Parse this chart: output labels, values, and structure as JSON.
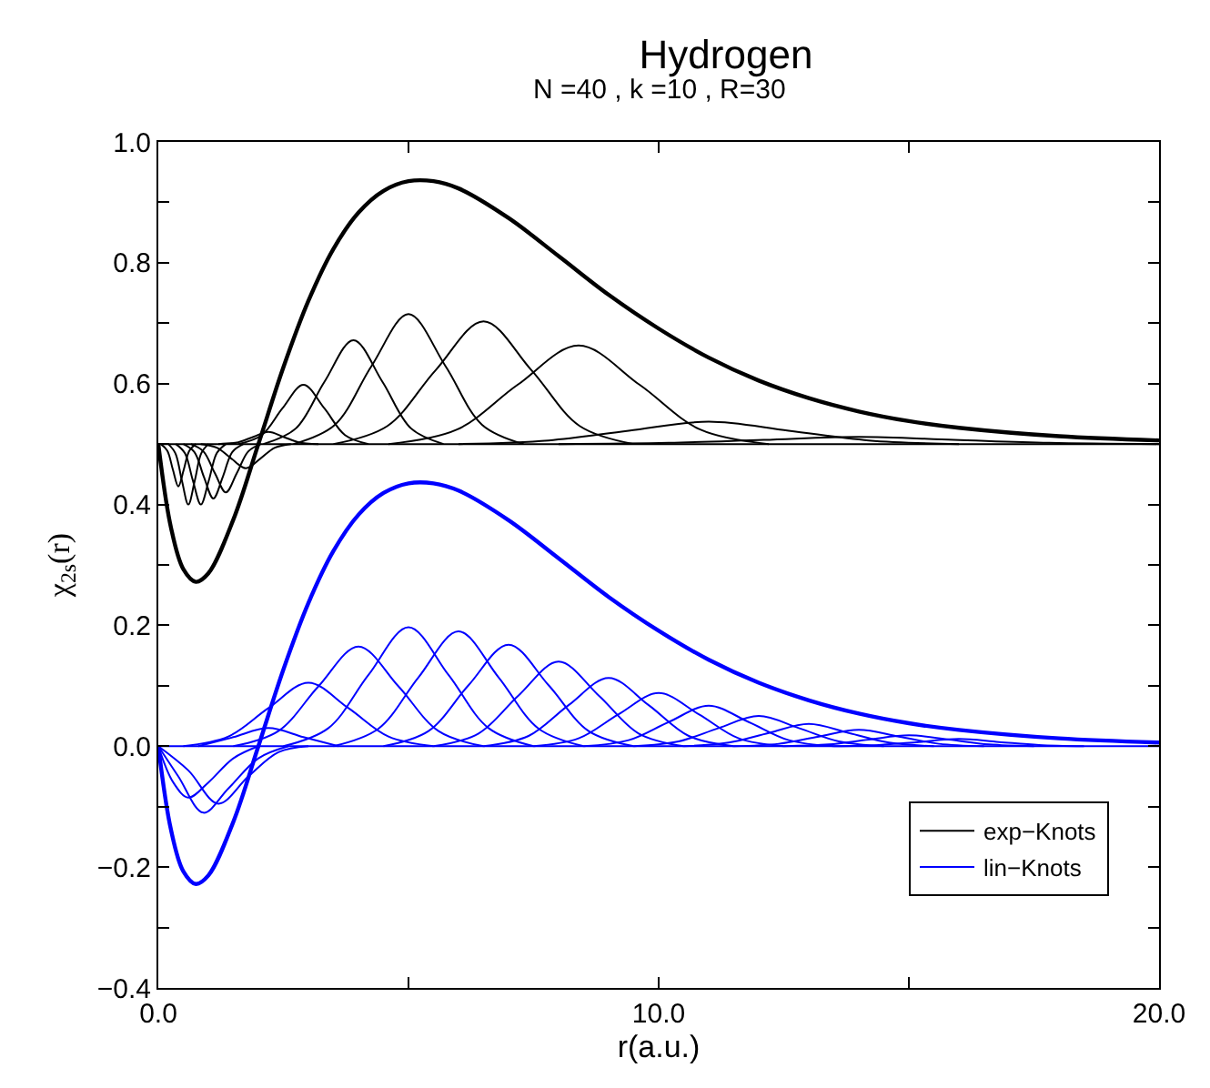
{
  "chart_data": {
    "type": "line",
    "title": "Hydrogen",
    "subtitle": "N =40 , k =10 , R=30",
    "xlabel": "r(a.u.)",
    "ylabel": "χ$_{2s}$(r)",
    "xlim": [
      0,
      20
    ],
    "xticks": [
      {
        "value": 0,
        "label": "0.0"
      },
      {
        "value": 5,
        "label": null
      },
      {
        "value": 10,
        "label": "10.0"
      },
      {
        "value": 15,
        "label": null
      },
      {
        "value": 20,
        "label": "20.0"
      }
    ],
    "ylim": [
      -0.4,
      1.0
    ],
    "yticks": [
      {
        "value": -0.4,
        "label": "−0.4"
      },
      {
        "value": -0.3,
        "label": null
      },
      {
        "value": -0.2,
        "label": "−0.2"
      },
      {
        "value": -0.1,
        "label": null
      },
      {
        "value": 0,
        "label": "0.0"
      },
      {
        "value": 0.1,
        "label": null
      },
      {
        "value": 0.2,
        "label": "0.2"
      },
      {
        "value": 0.3,
        "label": null
      },
      {
        "value": 0.4,
        "label": "0.4"
      },
      {
        "value": 0.5,
        "label": null
      },
      {
        "value": 0.6,
        "label": "0.6"
      },
      {
        "value": 0.7,
        "label": null
      },
      {
        "value": 0.8,
        "label": "0.8"
      },
      {
        "value": 0.9,
        "label": null
      },
      {
        "value": 1.0,
        "label": "1.0"
      }
    ],
    "legend": "bottom right",
    "marker": "none",
    "line_style": "solid",
    "series": [
      {
        "color": "#000000",
        "x": [
          0,
          0.25,
          0.5,
          0.75,
          1.0,
          1.5,
          2,
          2.5,
          3,
          3.5,
          4,
          4.5,
          5,
          5.5,
          6,
          7,
          8,
          9,
          10,
          11,
          12,
          13,
          14,
          15,
          16,
          18,
          20
        ],
        "values": [
          0.5,
          0.363,
          0.293,
          0.272,
          0.286,
          0.375,
          0.5,
          0.627,
          0.737,
          0.823,
          0.883,
          0.919,
          0.935,
          0.935,
          0.923,
          0.874,
          0.811,
          0.747,
          0.691,
          0.643,
          0.605,
          0.576,
          0.554,
          0.538,
          0.527,
          0.513,
          0.506
        ]
      },
      {
        "color": "#0000ff",
        "x": [
          0,
          0.25,
          0.5,
          0.75,
          1.0,
          1.5,
          2,
          2.5,
          3,
          3.5,
          4,
          4.5,
          5,
          5.5,
          6,
          7,
          8,
          9,
          10,
          11,
          12,
          13,
          14,
          15,
          16,
          18,
          20
        ],
        "values": [
          0,
          -0.137,
          -0.207,
          -0.228,
          -0.214,
          -0.125,
          0,
          0.127,
          0.237,
          0.323,
          0.383,
          0.419,
          0.435,
          0.435,
          0.423,
          0.374,
          0.311,
          0.247,
          0.191,
          0.143,
          0.105,
          0.076,
          0.054,
          0.038,
          0.027,
          0.013,
          0.006
        ]
      },
      {
        "name": "exp−Knots",
        "color": "#000000",
        "x": [
          0,
          20
        ],
        "values": [
          0.5,
          0.5
        ]
      },
      {
        "color": "#000000",
        "x": [
          1.6,
          2.07,
          2.48,
          2.9,
          3.32,
          3.73,
          4.2
        ],
        "values": [
          0.5,
          0.515,
          0.559,
          0.598,
          0.559,
          0.515,
          0.5
        ]
      },
      {
        "color": "#000000",
        "x": [
          2.1,
          2.75,
          3.32,
          3.9,
          4.48,
          5.05,
          5.7
        ],
        "values": [
          0.5,
          0.526,
          0.603,
          0.672,
          0.603,
          0.526,
          0.5
        ]
      },
      {
        "color": "#000000",
        "x": [
          2.7,
          3.53,
          4.26,
          5.0,
          5.74,
          6.47,
          7.3
        ],
        "values": [
          0.5,
          0.532,
          0.629,
          0.715,
          0.629,
          0.532,
          0.5
        ]
      },
      {
        "color": "#000000",
        "x": [
          3.5,
          4.58,
          5.54,
          6.5,
          7.46,
          8.42,
          9.5
        ],
        "values": [
          0.5,
          0.53,
          0.622,
          0.703,
          0.622,
          0.53,
          0.5
        ]
      },
      {
        "color": "#000000",
        "x": [
          4.6,
          5.97,
          7.18,
          8.4,
          9.62,
          10.83,
          12.2
        ],
        "values": [
          0.5,
          0.524,
          0.598,
          0.663,
          0.598,
          0.524,
          0.5
        ]
      },
      {
        "color": "#000000",
        "x": [
          6,
          7.8,
          9.4,
          11,
          12.6,
          14.2,
          16
        ],
        "values": [
          0.5,
          0.506,
          0.522,
          0.537,
          0.522,
          0.506,
          0.5
        ]
      },
      {
        "color": "#000000",
        "x": [
          8,
          10.2,
          12.1,
          14,
          15.9,
          17.8,
          20
        ],
        "values": [
          0.5,
          0.502,
          0.507,
          0.512,
          0.507,
          0.502,
          0.5
        ]
      },
      {
        "color": "#000000",
        "x": [
          1.2,
          1.6,
          1.9,
          2.2,
          2.5,
          2.8,
          3.2
        ],
        "values": [
          0.5,
          0.503,
          0.512,
          0.52,
          0.512,
          0.503,
          0.5
        ]
      },
      {
        "color": "#000000",
        "x": [
          0.05,
          0.18,
          0.29,
          0.4,
          0.51,
          0.62,
          0.75
        ],
        "values": [
          0.5,
          0.489,
          0.458,
          0.43,
          0.458,
          0.489,
          0.5
        ]
      },
      {
        "color": "#000000",
        "x": [
          0.2,
          0.34,
          0.47,
          0.6,
          0.73,
          0.86,
          1.0
        ],
        "values": [
          0.5,
          0.485,
          0.44,
          0.4,
          0.44,
          0.485,
          0.5
        ]
      },
      {
        "color": "#000000",
        "x": [
          0.35,
          0.53,
          0.69,
          0.85,
          1.01,
          1.17,
          1.35
        ],
        "values": [
          0.5,
          0.485,
          0.44,
          0.4,
          0.44,
          0.485,
          0.5
        ]
      },
      {
        "color": "#000000",
        "x": [
          0.5,
          0.72,
          0.91,
          1.1,
          1.29,
          1.48,
          1.7
        ],
        "values": [
          0.5,
          0.487,
          0.446,
          0.41,
          0.446,
          0.487,
          0.5
        ]
      },
      {
        "color": "#000000",
        "x": [
          0.65,
          0.9,
          1.13,
          1.35,
          1.57,
          1.8,
          2.05
        ],
        "values": [
          0.5,
          0.488,
          0.452,
          0.42,
          0.452,
          0.488,
          0.5
        ]
      },
      {
        "color": "#000000",
        "x": [
          0.85,
          1.17,
          1.46,
          1.75,
          2.04,
          2.33,
          2.65
        ],
        "values": [
          0.5,
          0.494,
          0.476,
          0.46,
          0.476,
          0.494,
          0.5
        ]
      },
      {
        "name": "lin−Knots",
        "color": "#0000ff",
        "x": [
          0,
          20
        ],
        "values": [
          0,
          0
        ]
      },
      {
        "color": "#0000ff",
        "x": [
          0.5,
          1.4,
          2.2,
          3,
          3.8,
          4.6,
          5.5
        ],
        "values": [
          0,
          0.016,
          0.063,
          0.105,
          0.063,
          0.016,
          0
        ]
      },
      {
        "color": "#0000ff",
        "x": [
          1.5,
          2.4,
          3.2,
          4,
          4.8,
          5.6,
          6.5
        ],
        "values": [
          0,
          0.025,
          0.099,
          0.165,
          0.099,
          0.025,
          0
        ]
      },
      {
        "color": "#0000ff",
        "x": [
          2.5,
          3.4,
          4.2,
          5,
          5.8,
          6.6,
          7.5
        ],
        "values": [
          0,
          0.03,
          0.118,
          0.197,
          0.118,
          0.03,
          0
        ]
      },
      {
        "color": "#0000ff",
        "x": [
          3.5,
          4.4,
          5.2,
          6,
          6.8,
          7.6,
          8.5
        ],
        "values": [
          0,
          0.029,
          0.114,
          0.19,
          0.114,
          0.029,
          0
        ]
      },
      {
        "color": "#0000ff",
        "x": [
          4.5,
          5.4,
          6.2,
          7,
          7.8,
          8.6,
          9.5
        ],
        "values": [
          0,
          0.025,
          0.101,
          0.168,
          0.101,
          0.025,
          0
        ]
      },
      {
        "color": "#0000ff",
        "x": [
          5.5,
          6.4,
          7.2,
          8,
          8.8,
          9.6,
          10.5
        ],
        "values": [
          0,
          0.021,
          0.084,
          0.14,
          0.084,
          0.021,
          0
        ]
      },
      {
        "color": "#0000ff",
        "x": [
          6.5,
          7.4,
          8.2,
          9,
          9.8,
          10.6,
          11.5
        ],
        "values": [
          0,
          0.017,
          0.068,
          0.113,
          0.068,
          0.017,
          0
        ]
      },
      {
        "color": "#0000ff",
        "x": [
          7.5,
          8.4,
          9.2,
          10,
          10.8,
          11.6,
          12.5
        ],
        "values": [
          0,
          0.013,
          0.053,
          0.088,
          0.053,
          0.013,
          0
        ]
      },
      {
        "color": "#0000ff",
        "x": [
          8.5,
          9.4,
          10.2,
          11,
          11.8,
          12.6,
          13.5
        ],
        "values": [
          0,
          0.01,
          0.04,
          0.067,
          0.04,
          0.01,
          0
        ]
      },
      {
        "color": "#0000ff",
        "x": [
          9.5,
          10.4,
          11.2,
          12,
          12.8,
          13.6,
          14.5
        ],
        "values": [
          0,
          0.008,
          0.03,
          0.05,
          0.03,
          0.008,
          0
        ]
      },
      {
        "color": "#0000ff",
        "x": [
          10.5,
          11.4,
          12.2,
          13,
          13.8,
          14.6,
          15.5
        ],
        "values": [
          0,
          0.006,
          0.022,
          0.037,
          0.022,
          0.006,
          0
        ]
      },
      {
        "color": "#0000ff",
        "x": [
          11.5,
          12.4,
          13.2,
          14,
          14.8,
          15.6,
          16.5
        ],
        "values": [
          0,
          0.004,
          0.016,
          0.027,
          0.016,
          0.004,
          0
        ]
      },
      {
        "color": "#0000ff",
        "x": [
          12.5,
          13.4,
          14.2,
          15,
          15.8,
          16.6,
          17.5
        ],
        "values": [
          0,
          0.003,
          0.011,
          0.018,
          0.011,
          0.003,
          0
        ]
      },
      {
        "color": "#0000ff",
        "x": [
          13.5,
          14.4,
          15.2,
          16,
          16.8,
          17.6,
          18.5
        ],
        "values": [
          0,
          0.002,
          0.007,
          0.012,
          0.007,
          0.002,
          0
        ]
      },
      {
        "color": "#0000ff",
        "x": [
          0,
          0.3,
          0.6,
          1.0,
          1.5,
          2.0
        ],
        "values": [
          0,
          -0.06,
          -0.085,
          -0.06,
          -0.02,
          0
        ]
      },
      {
        "color": "#0000ff",
        "x": [
          0,
          0.4,
          0.9,
          1.4,
          2.0,
          2.6
        ],
        "values": [
          0,
          -0.05,
          -0.11,
          -0.07,
          -0.02,
          0
        ]
      },
      {
        "color": "#0000ff",
        "x": [
          0,
          0.6,
          1.2,
          1.8,
          2.4,
          3.0
        ],
        "values": [
          0,
          -0.04,
          -0.095,
          -0.05,
          -0.01,
          0
        ]
      },
      {
        "color": "#0000ff",
        "x": [
          0.8,
          1.5,
          2.2,
          2.9,
          3.6
        ],
        "values": [
          0,
          0.015,
          0.03,
          0.015,
          0
        ]
      }
    ]
  }
}
